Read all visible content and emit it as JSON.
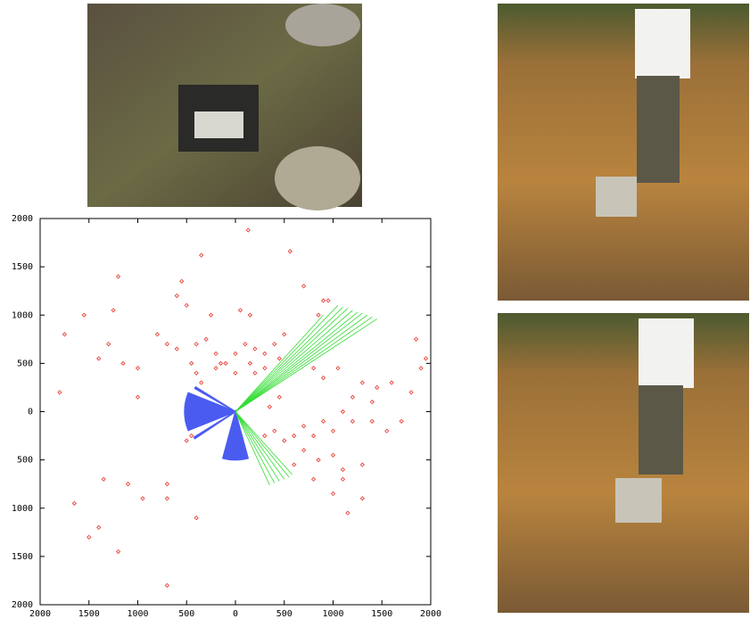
{
  "chart_data": {
    "type": "scatter",
    "xlim": [
      -2000,
      2000
    ],
    "ylim": [
      -2000,
      2000
    ],
    "xticks": [
      {
        "value": -2000,
        "label": "2000"
      },
      {
        "value": -1500,
        "label": "1500"
      },
      {
        "value": -1000,
        "label": "1000"
      },
      {
        "value": -500,
        "label": "500"
      },
      0,
      500,
      1000,
      1500,
      2000
    ],
    "yticks": [
      {
        "value": -2000,
        "label": "2000"
      },
      {
        "value": -1500,
        "label": "1500"
      },
      {
        "value": -1000,
        "label": "1000"
      },
      {
        "value": -500,
        "label": "500"
      },
      0,
      500,
      1000,
      1500,
      2000
    ],
    "series": [
      {
        "mode": "markers",
        "color": "#e8443a",
        "x": [
          130,
          -350,
          560,
          -1200,
          -1550,
          -1250,
          -1750,
          -1300,
          -1400,
          -1150,
          -550,
          -600,
          -500,
          -250,
          50,
          150,
          700,
          900,
          950,
          850,
          -800,
          -700,
          -600,
          -400,
          -300,
          -200,
          0,
          100,
          200,
          300,
          400,
          500,
          450,
          -100,
          -200,
          -150,
          0,
          150,
          200,
          300,
          -400,
          -350,
          -1000,
          -450,
          800,
          900,
          1050,
          1300,
          1450,
          1600,
          1800,
          1900,
          1850,
          1950,
          1700,
          1550,
          1400,
          1200,
          1100,
          1000,
          900,
          800,
          700,
          600,
          500,
          400,
          300,
          350,
          450,
          1000,
          850,
          1100,
          800,
          1000,
          1150,
          1300,
          1100,
          1300,
          -500,
          -450,
          -1350,
          -1100,
          -950,
          -700,
          -700,
          -400,
          -1650,
          -1400,
          -1500,
          -1200,
          -700,
          -1800,
          -1000,
          1200,
          1400,
          600,
          700
        ],
        "y": [
          1880,
          1620,
          1660,
          1400,
          1000,
          1050,
          800,
          700,
          550,
          500,
          1350,
          1200,
          1100,
          1000,
          1050,
          1000,
          1300,
          1150,
          1150,
          1000,
          800,
          700,
          650,
          700,
          750,
          600,
          600,
          700,
          650,
          600,
          700,
          800,
          550,
          500,
          450,
          500,
          400,
          500,
          400,
          450,
          400,
          300,
          450,
          500,
          450,
          350,
          450,
          300,
          250,
          300,
          200,
          450,
          750,
          550,
          -100,
          -200,
          -100,
          -100,
          0,
          -200,
          -100,
          -250,
          -150,
          -250,
          -300,
          -200,
          -250,
          50,
          150,
          -450,
          -500,
          -600,
          -700,
          -850,
          -1050,
          -900,
          -700,
          -550,
          -300,
          -250,
          -700,
          -750,
          -900,
          -750,
          -900,
          -1100,
          -950,
          -1200,
          -1300,
          -1450,
          -1800,
          200,
          150,
          150,
          100,
          -550,
          -400
        ]
      },
      {
        "mode": "rays",
        "color": "#33dd33",
        "x": [
          1050,
          1100,
          1150,
          1200,
          1250,
          1300,
          1350,
          1400,
          1450,
          900,
          350,
          400,
          450,
          500,
          550,
          580
        ],
        "y": [
          1100,
          1080,
          1070,
          1050,
          1030,
          1020,
          1000,
          980,
          960,
          1000,
          -760,
          -740,
          -720,
          -700,
          -680,
          -650
        ]
      },
      {
        "mode": "fans",
        "color": "#4a5cf0",
        "from_deg": [
          158,
          255,
          148,
          212
        ],
        "to_deg": [
          202,
          285,
          150,
          214
        ],
        "radius": [
          520,
          500,
          480,
          500
        ]
      }
    ]
  }
}
